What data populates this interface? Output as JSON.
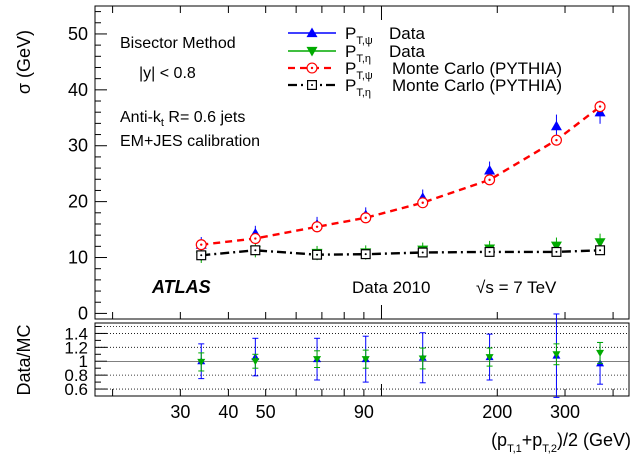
{
  "chart_data": [
    {
      "type": "scatter",
      "panel": "main",
      "ylabel": "σ (GeV)",
      "ylim": [
        -1,
        55
      ],
      "xlim": [
        18,
        440
      ],
      "x_scale": "log",
      "y_ticks": [
        0,
        10,
        20,
        30,
        40,
        50
      ],
      "grid": false,
      "legend_position": "top-right",
      "annotations": {
        "method": "Bisector Method",
        "rapidity": "|y| < 0.8",
        "jets_prefix": "Anti-k",
        "jets_sub": "t",
        "jets_suffix": " R= 0.6 jets",
        "calibration": "EM+JES calibration",
        "experiment": "ATLAS",
        "dataset": "Data 2010",
        "energy_sqrt": "√s",
        "energy_value": "= 7 TeV"
      },
      "series": [
        {
          "name_main": "P",
          "name_sub": "T,ψ",
          "name_suffix": "Data",
          "color": "#0000ff",
          "marker": "triangle-up",
          "line": "solid",
          "points": [
            {
              "x": 34,
              "y": 12.3,
              "err": 0.3
            },
            {
              "x": 47,
              "y": 14.3,
              "err": 0.3
            },
            {
              "x": 68,
              "y": 15.9,
              "err": 0.3
            },
            {
              "x": 91,
              "y": 17.6,
              "err": 0.3
            },
            {
              "x": 128,
              "y": 20.7,
              "err": 0.4
            },
            {
              "x": 191,
              "y": 25.6,
              "err": 0.5
            },
            {
              "x": 285,
              "y": 33.5,
              "err": 1.0
            },
            {
              "x": 370,
              "y": 36.0,
              "err": 1.0
            }
          ]
        },
        {
          "name_main": "P",
          "name_sub": "T,η",
          "name_suffix": "Data",
          "color": "#00aa00",
          "marker": "triangle-down",
          "line": "solid",
          "points": [
            {
              "x": 34,
              "y": 10.3,
              "err": 0.2
            },
            {
              "x": 47,
              "y": 11.3,
              "err": 0.2
            },
            {
              "x": 68,
              "y": 10.8,
              "err": 0.2
            },
            {
              "x": 91,
              "y": 10.9,
              "err": 0.2
            },
            {
              "x": 128,
              "y": 11.4,
              "err": 0.2
            },
            {
              "x": 191,
              "y": 11.6,
              "err": 0.3
            },
            {
              "x": 285,
              "y": 12.1,
              "err": 0.4
            },
            {
              "x": 370,
              "y": 12.7,
              "err": 0.5
            }
          ]
        },
        {
          "name_main": "P",
          "name_sub": "T,ψ",
          "name_suffix": "Monte Carlo (PYTHIA)",
          "color": "#ff0000",
          "marker": "circle-open",
          "line": "dashed",
          "points": [
            {
              "x": 34,
              "y": 12.3
            },
            {
              "x": 47,
              "y": 13.4
            },
            {
              "x": 68,
              "y": 15.5
            },
            {
              "x": 91,
              "y": 17.1
            },
            {
              "x": 128,
              "y": 19.8
            },
            {
              "x": 191,
              "y": 23.9
            },
            {
              "x": 285,
              "y": 31.0
            },
            {
              "x": 370,
              "y": 37.0
            }
          ]
        },
        {
          "name_main": "P",
          "name_sub": "T,η",
          "name_suffix": "Monte Carlo (PYTHIA)",
          "color": "#000000",
          "marker": "square-open",
          "line": "dashdot",
          "points": [
            {
              "x": 34,
              "y": 10.4
            },
            {
              "x": 47,
              "y": 11.3
            },
            {
              "x": 68,
              "y": 10.5
            },
            {
              "x": 91,
              "y": 10.6
            },
            {
              "x": 128,
              "y": 10.9
            },
            {
              "x": 191,
              "y": 11.0
            },
            {
              "x": 285,
              "y": 11.0
            },
            {
              "x": 370,
              "y": 11.3
            }
          ]
        }
      ]
    },
    {
      "type": "scatter",
      "panel": "ratio",
      "ylabel": "Data/MC",
      "xlabel_main": "(p",
      "xlabel_sub1": "T,1",
      "xlabel_mid": "+p",
      "xlabel_sub2": "T,2",
      "xlabel_end": ")/2 (GeV)",
      "ylim": [
        0.5,
        1.55
      ],
      "xlim": [
        18,
        440
      ],
      "x_scale": "log",
      "x_ticks": [
        30,
        40,
        50,
        90,
        200,
        300
      ],
      "y_ticks": [
        0.6,
        0.8,
        1,
        1.2,
        1.4
      ],
      "y_tick_labels": [
        "0.6",
        "0.8",
        "1",
        "1.2",
        "1.4"
      ],
      "dotted_gridlines": [
        0.6,
        0.8,
        1.2,
        1.4,
        1.5
      ],
      "series": [
        {
          "name": "P T,ψ Data/MC",
          "color": "#0000ff",
          "marker": "triangle-up",
          "points": [
            {
              "x": 34,
              "y": 1.0,
              "err": 0.25
            },
            {
              "x": 47,
              "y": 1.06,
              "err": 0.27
            },
            {
              "x": 68,
              "y": 1.03,
              "err": 0.3
            },
            {
              "x": 91,
              "y": 1.03,
              "err": 0.33
            },
            {
              "x": 128,
              "y": 1.05,
              "err": 0.36
            },
            {
              "x": 191,
              "y": 1.06,
              "err": 0.33
            },
            {
              "x": 285,
              "y": 1.08,
              "err": 0.6
            },
            {
              "x": 370,
              "y": 0.97,
              "err": 0.3
            }
          ]
        },
        {
          "name": "P T,η Data/MC",
          "color": "#00aa00",
          "marker": "triangle-down",
          "points": [
            {
              "x": 34,
              "y": 0.99,
              "err": 0.13
            },
            {
              "x": 47,
              "y": 1.0,
              "err": 0.1
            },
            {
              "x": 68,
              "y": 1.03,
              "err": 0.12
            },
            {
              "x": 91,
              "y": 1.03,
              "err": 0.13
            },
            {
              "x": 128,
              "y": 1.04,
              "err": 0.15
            },
            {
              "x": 191,
              "y": 1.06,
              "err": 0.13
            },
            {
              "x": 285,
              "y": 1.1,
              "err": 0.15
            },
            {
              "x": 370,
              "y": 1.12,
              "err": 0.15
            }
          ]
        }
      ]
    }
  ]
}
